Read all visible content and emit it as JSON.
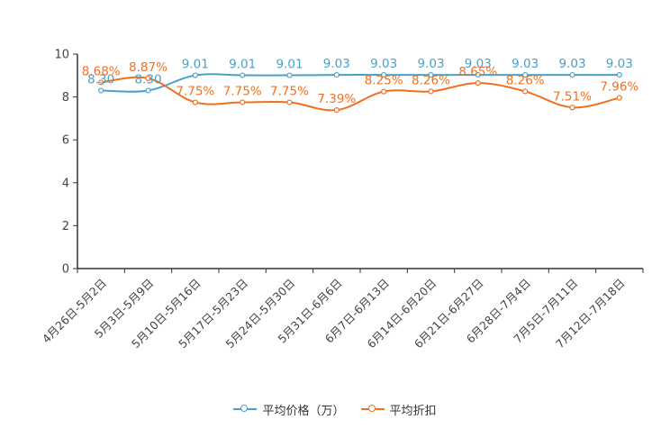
{
  "colors": {
    "price": "#4aa0c9",
    "discount": "#f07020",
    "axis": "#333333",
    "text": "#444444"
  },
  "chart_data": {
    "type": "line",
    "title": "",
    "xlabel": "",
    "ylabel": "",
    "ylim": [
      0,
      10
    ],
    "yticks": [
      "0",
      "2",
      "4",
      "6",
      "8",
      "10"
    ],
    "categories": [
      "4月26日-5月2日",
      "5月3日-5月9日",
      "5月10日-5月16日",
      "5月17日-5月23日",
      "5月24日-5月30日",
      "5月31日-6月6日",
      "6月7日-6月13日",
      "6月14日-6月20日",
      "6月21日-6月27日",
      "6月28日-7月4日",
      "7月5日-7月11日",
      "7月12日-7月18日"
    ],
    "series": [
      {
        "name": "平均价格（万）",
        "values": [
          8.3,
          8.3,
          9.01,
          9.01,
          9.01,
          9.03,
          9.03,
          9.03,
          9.03,
          9.03,
          9.03,
          9.03
        ],
        "labels": [
          "8.30",
          "8.30",
          "9.01",
          "9.01",
          "9.01",
          "9.03",
          "9.03",
          "9.03",
          "9.03",
          "9.03",
          "9.03",
          "9.03"
        ]
      },
      {
        "name": "平均折扣",
        "values": [
          8.68,
          8.87,
          7.75,
          7.75,
          7.75,
          7.39,
          8.25,
          8.26,
          8.65,
          8.26,
          7.51,
          7.96
        ],
        "labels": [
          "8.68%",
          "8.87%",
          "7.75%",
          "7.75%",
          "7.75%",
          "7.39%",
          "8.25%",
          "8.26%",
          "8.65%",
          "8.26%",
          "7.51%",
          "7.96%"
        ]
      }
    ],
    "legend_position": "bottom"
  }
}
